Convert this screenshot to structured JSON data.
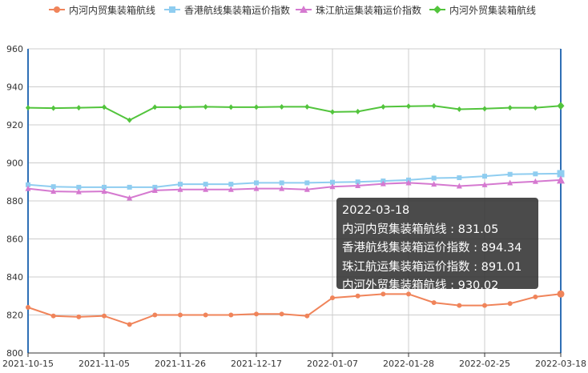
{
  "chart_data": {
    "type": "line",
    "x": [
      "2021-10-15",
      "2021-10-22",
      "2021-10-29",
      "2021-11-05",
      "2021-11-12",
      "2021-11-19",
      "2021-11-26",
      "2021-12-03",
      "2021-12-10",
      "2021-12-17",
      "2021-12-24",
      "2021-12-31",
      "2022-01-07",
      "2022-01-14",
      "2022-01-21",
      "2022-01-28",
      "2022-02-04",
      "2022-02-11",
      "2022-02-25",
      "2022-03-04",
      "2022-03-11",
      "2022-03-18"
    ],
    "x_tick_labels": [
      "2021-10-15",
      "2021-11-05",
      "2021-11-26",
      "2021-12-17",
      "2022-01-07",
      "2022-01-28",
      "2022-02-25",
      "2022-03-18"
    ],
    "ylim": [
      800,
      960
    ],
    "y_ticks": [
      800,
      820,
      840,
      860,
      880,
      900,
      920,
      940,
      960
    ],
    "grid": true,
    "legend_position": "top",
    "series": [
      {
        "name": "内河内贸集装箱航线",
        "color": "#f0845a",
        "marker": "circle",
        "values": [
          824,
          819.5,
          819,
          819.5,
          815,
          820,
          820,
          820,
          820,
          820.5,
          820.5,
          819.5,
          829,
          830,
          831,
          831,
          826.5,
          825,
          825,
          826,
          829.5,
          831.05
        ]
      },
      {
        "name": "香港航线集装箱运价指数",
        "color": "#8fcdf0",
        "marker": "square",
        "values": [
          888.5,
          887.5,
          887.2,
          887.2,
          887.2,
          887.2,
          888.8,
          888.8,
          888.8,
          889.5,
          889.5,
          889.5,
          889.8,
          890,
          890.5,
          891,
          892,
          892.2,
          893,
          894,
          894.2,
          894.34
        ]
      },
      {
        "name": "珠江航运集装箱运价指数",
        "color": "#d579d0",
        "marker": "triangle",
        "values": [
          886.5,
          885,
          884.8,
          885,
          881.5,
          885.5,
          886,
          886,
          886,
          886.5,
          886.5,
          886,
          887.5,
          888,
          889,
          889.5,
          888.8,
          887.8,
          888.5,
          889.5,
          890.2,
          891.01
        ]
      },
      {
        "name": "内河外贸集装箱航线",
        "color": "#52c43c",
        "marker": "diamond",
        "values": [
          929,
          928.8,
          929,
          929.3,
          922.5,
          929.3,
          929.3,
          929.5,
          929.3,
          929.3,
          929.5,
          929.5,
          926.8,
          927,
          929.5,
          929.8,
          930,
          928.2,
          928.5,
          929,
          929,
          930.02
        ]
      }
    ]
  },
  "tooltip": {
    "date": "2022-03-18",
    "rows": [
      "内河内贸集装箱航线 : 831.05",
      "香港航线集装箱运价指数 : 894.34",
      "珠江航运集装箱运价指数 : 891.01",
      "内河外贸集装箱航线 : 930.02"
    ]
  }
}
